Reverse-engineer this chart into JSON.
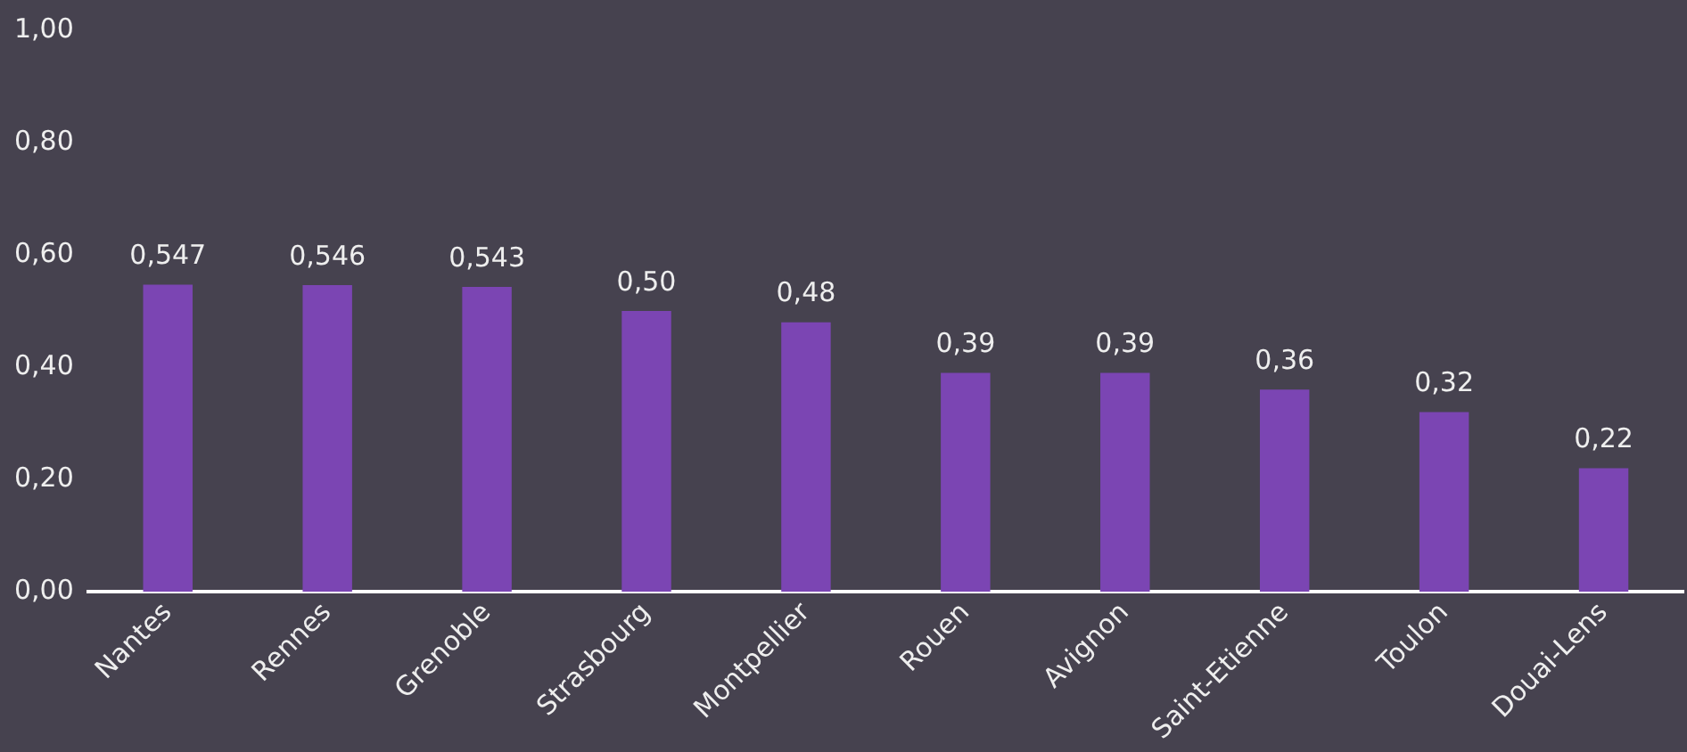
{
  "chart_data": {
    "type": "bar",
    "categories": [
      "Nantes",
      "Rennes",
      "Grenoble",
      "Strasbourg",
      "Montpellier",
      "Rouen",
      "Avignon",
      "Saint-Etienne",
      "Toulon",
      "Douai-Lens"
    ],
    "values": [
      0.547,
      0.546,
      0.543,
      0.5,
      0.48,
      0.39,
      0.39,
      0.36,
      0.32,
      0.22
    ],
    "value_labels": [
      "0,547",
      "0,546",
      "0,543",
      "0,50",
      "0,48",
      "0,39",
      "0,39",
      "0,36",
      "0,32",
      "0,22"
    ],
    "color": "#7b45b3",
    "ylim": [
      0,
      1
    ],
    "yticks": [
      {
        "value": 0,
        "label": "0,00"
      },
      {
        "value": 0.2,
        "label": "0,20"
      },
      {
        "value": 0.4,
        "label": "0,40"
      },
      {
        "value": 0.6,
        "label": "0,60"
      },
      {
        "value": 0.8,
        "label": "0,80"
      },
      {
        "value": 1,
        "label": "1,00"
      }
    ],
    "grid": false,
    "legend": false
  }
}
